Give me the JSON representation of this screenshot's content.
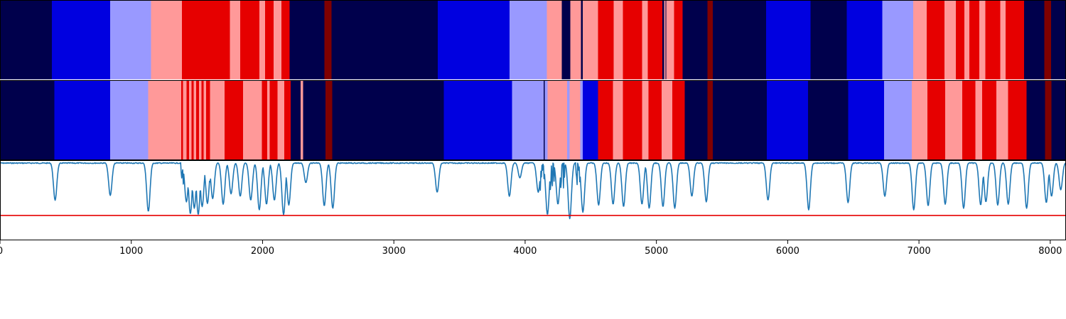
{
  "chart_data": {
    "type": "heatmap",
    "xlim": [
      0,
      8120
    ],
    "x_ticks": [
      0,
      1000,
      2000,
      3000,
      4000,
      5000,
      6000,
      7000,
      8000
    ],
    "x_tick_labels": [
      "0",
      "1000",
      "2000",
      "3000",
      "4000",
      "5000",
      "6000",
      "7000",
      "8000"
    ],
    "palette": {
      "0": "#00004c",
      "1": "#0000e0",
      "2": "#9999ff",
      "3": "#ff9999",
      "4": "#e60000",
      "5": "#800000"
    },
    "top_band": [
      [
        0,
        395,
        0
      ],
      [
        395,
        840,
        1
      ],
      [
        840,
        1150,
        2
      ],
      [
        1150,
        1385,
        3
      ],
      [
        1385,
        1750,
        4
      ],
      [
        1750,
        1830,
        3
      ],
      [
        1830,
        1975,
        4
      ],
      [
        1975,
        2020,
        3
      ],
      [
        2020,
        2085,
        4
      ],
      [
        2085,
        2145,
        3
      ],
      [
        2145,
        2205,
        4
      ],
      [
        2205,
        2470,
        0
      ],
      [
        2470,
        2525,
        5
      ],
      [
        2525,
        3335,
        0
      ],
      [
        3335,
        3880,
        1
      ],
      [
        3880,
        4165,
        2
      ],
      [
        4165,
        4280,
        3
      ],
      [
        4280,
        4345,
        0
      ],
      [
        4345,
        4425,
        3
      ],
      [
        4425,
        4440,
        0
      ],
      [
        4440,
        4555,
        3
      ],
      [
        4555,
        4675,
        4
      ],
      [
        4675,
        4745,
        3
      ],
      [
        4745,
        4890,
        4
      ],
      [
        4890,
        4935,
        3
      ],
      [
        4935,
        5045,
        4
      ],
      [
        5045,
        5060,
        0
      ],
      [
        5060,
        5070,
        3
      ],
      [
        5070,
        5075,
        0
      ],
      [
        5075,
        5135,
        3
      ],
      [
        5135,
        5200,
        4
      ],
      [
        5200,
        5390,
        0
      ],
      [
        5390,
        5430,
        5
      ],
      [
        5430,
        5835,
        0
      ],
      [
        5835,
        6175,
        1
      ],
      [
        6175,
        6450,
        0
      ],
      [
        6450,
        6720,
        1
      ],
      [
        6720,
        6955,
        2
      ],
      [
        6955,
        7060,
        3
      ],
      [
        7060,
        7195,
        4
      ],
      [
        7195,
        7280,
        3
      ],
      [
        7280,
        7345,
        4
      ],
      [
        7345,
        7385,
        3
      ],
      [
        7385,
        7460,
        4
      ],
      [
        7460,
        7505,
        3
      ],
      [
        7505,
        7620,
        4
      ],
      [
        7620,
        7660,
        3
      ],
      [
        7660,
        7800,
        4
      ],
      [
        7800,
        7955,
        0
      ],
      [
        7955,
        8005,
        5
      ],
      [
        8005,
        8120,
        0
      ]
    ],
    "bottom_band": [
      [
        0,
        415,
        0
      ],
      [
        415,
        840,
        1
      ],
      [
        840,
        1130,
        2
      ],
      [
        1130,
        1380,
        3
      ],
      [
        1380,
        1395,
        4
      ],
      [
        1395,
        1420,
        3
      ],
      [
        1420,
        1440,
        4
      ],
      [
        1440,
        1460,
        3
      ],
      [
        1460,
        1475,
        4
      ],
      [
        1475,
        1495,
        3
      ],
      [
        1495,
        1515,
        4
      ],
      [
        1515,
        1535,
        3
      ],
      [
        1535,
        1550,
        4
      ],
      [
        1550,
        1570,
        3
      ],
      [
        1570,
        1600,
        4
      ],
      [
        1600,
        1710,
        3
      ],
      [
        1710,
        1850,
        4
      ],
      [
        1850,
        1995,
        3
      ],
      [
        1995,
        2035,
        4
      ],
      [
        2035,
        2055,
        3
      ],
      [
        2055,
        2115,
        4
      ],
      [
        2115,
        2165,
        3
      ],
      [
        2165,
        2215,
        4
      ],
      [
        2215,
        2290,
        0
      ],
      [
        2290,
        2310,
        3
      ],
      [
        2310,
        2480,
        0
      ],
      [
        2480,
        2530,
        5
      ],
      [
        2530,
        3380,
        0
      ],
      [
        3380,
        3900,
        1
      ],
      [
        3900,
        4140,
        2
      ],
      [
        4140,
        4150,
        0
      ],
      [
        4150,
        4170,
        2
      ],
      [
        4170,
        4320,
        3
      ],
      [
        4320,
        4340,
        2
      ],
      [
        4340,
        4420,
        3
      ],
      [
        4420,
        4440,
        2
      ],
      [
        4440,
        4555,
        1
      ],
      [
        4555,
        4670,
        4
      ],
      [
        4670,
        4745,
        3
      ],
      [
        4745,
        4890,
        4
      ],
      [
        4890,
        4940,
        3
      ],
      [
        4940,
        5040,
        4
      ],
      [
        5040,
        5120,
        3
      ],
      [
        5120,
        5215,
        4
      ],
      [
        5215,
        5390,
        0
      ],
      [
        5390,
        5430,
        5
      ],
      [
        5430,
        5840,
        0
      ],
      [
        5840,
        6155,
        1
      ],
      [
        6155,
        6460,
        0
      ],
      [
        6460,
        6735,
        1
      ],
      [
        6735,
        6945,
        2
      ],
      [
        6945,
        7065,
        3
      ],
      [
        7065,
        7200,
        4
      ],
      [
        7200,
        7330,
        3
      ],
      [
        7330,
        7430,
        4
      ],
      [
        7430,
        7480,
        3
      ],
      [
        7480,
        7590,
        4
      ],
      [
        7590,
        7680,
        3
      ],
      [
        7680,
        7820,
        4
      ],
      [
        7820,
        7960,
        0
      ],
      [
        7960,
        8010,
        5
      ],
      [
        8010,
        8120,
        0
      ]
    ],
    "signal": {
      "color": "#1f77b4",
      "baseline": 0.97,
      "y_range": [
        0,
        1
      ],
      "threshold": 0.31,
      "threshold_color": "#e60000",
      "dips": [
        [
          420,
          0.5
        ],
        [
          840,
          0.56
        ],
        [
          1130,
          0.36
        ],
        [
          1420,
          0.48
        ],
        [
          1450,
          0.33
        ],
        [
          1480,
          0.4
        ],
        [
          1510,
          0.32
        ],
        [
          1540,
          0.42
        ],
        [
          1580,
          0.46
        ],
        [
          1620,
          0.52
        ],
        [
          1700,
          0.45
        ],
        [
          1760,
          0.58
        ],
        [
          1830,
          0.55
        ],
        [
          1910,
          0.5
        ],
        [
          1975,
          0.38
        ],
        [
          2030,
          0.45
        ],
        [
          2090,
          0.5
        ],
        [
          2160,
          0.32
        ],
        [
          2200,
          0.44
        ],
        [
          2330,
          0.72
        ],
        [
          2470,
          0.43
        ],
        [
          2535,
          0.4
        ],
        [
          3330,
          0.6
        ],
        [
          3880,
          0.55
        ],
        [
          3960,
          0.78
        ],
        [
          4100,
          0.6
        ],
        [
          4170,
          0.32
        ],
        [
          4250,
          0.45
        ],
        [
          4340,
          0.27
        ],
        [
          4440,
          0.35
        ],
        [
          4560,
          0.44
        ],
        [
          4670,
          0.45
        ],
        [
          4750,
          0.42
        ],
        [
          4890,
          0.45
        ],
        [
          4945,
          0.4
        ],
        [
          5050,
          0.42
        ],
        [
          5140,
          0.4
        ],
        [
          5270,
          0.55
        ],
        [
          5380,
          0.48
        ],
        [
          5850,
          0.5
        ],
        [
          6160,
          0.38
        ],
        [
          6460,
          0.47
        ],
        [
          6740,
          0.55
        ],
        [
          6960,
          0.38
        ],
        [
          7070,
          0.43
        ],
        [
          7200,
          0.45
        ],
        [
          7340,
          0.4
        ],
        [
          7470,
          0.44
        ],
        [
          7510,
          0.48
        ],
        [
          7600,
          0.44
        ],
        [
          7680,
          0.45
        ],
        [
          7820,
          0.4
        ],
        [
          7970,
          0.47
        ],
        [
          8010,
          0.55
        ],
        [
          8080,
          0.63
        ]
      ],
      "noisy_regions": [
        [
          1380,
          1620,
          0.5
        ],
        [
          4100,
          4450,
          0.42
        ]
      ]
    }
  }
}
